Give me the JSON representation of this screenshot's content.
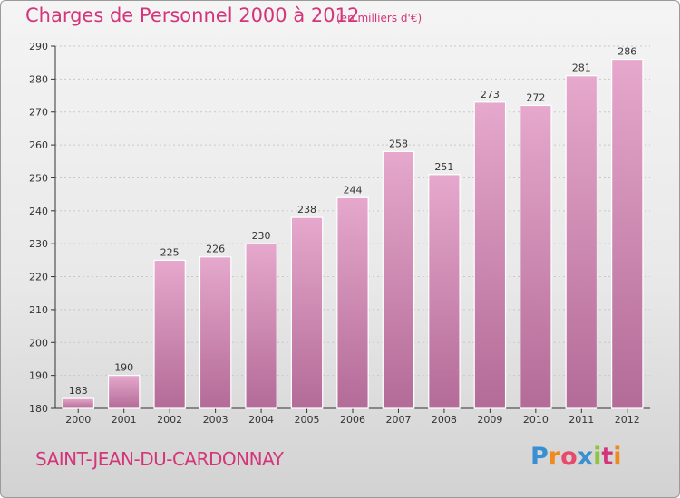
{
  "header": {
    "title": "Charges de Personnel 2000 à 2012",
    "subtitle": "(en milliers d'€)"
  },
  "footer": {
    "city": "SAINT-JEAN-DU-CARDONNAY",
    "logo": {
      "letters": [
        "P",
        "r",
        "o",
        "x",
        "i",
        "t",
        "i"
      ],
      "colors": [
        "#3a8fd0",
        "#f08a1c",
        "#e84a6a",
        "#3a8fd0",
        "#8cc63f",
        "#d4357a",
        "#f08a1c"
      ]
    }
  },
  "colors": {
    "accent": "#d4357a",
    "bar_top": "#e6a8cc",
    "bar_bottom": "#b36b97"
  },
  "chart_data": {
    "type": "bar",
    "title": "Charges de Personnel 2000 à 2012",
    "subtitle": "(en milliers d'€)",
    "xlabel": "",
    "ylabel": "",
    "categories": [
      "2000",
      "2001",
      "2002",
      "2003",
      "2004",
      "2005",
      "2006",
      "2007",
      "2008",
      "2009",
      "2010",
      "2011",
      "2012"
    ],
    "values": [
      183,
      190,
      225,
      226,
      230,
      238,
      244,
      258,
      251,
      273,
      272,
      281,
      286
    ],
    "ylim": [
      180,
      290
    ],
    "yticks": [
      180,
      190,
      200,
      210,
      220,
      230,
      240,
      250,
      260,
      270,
      280,
      290
    ],
    "grid": true,
    "legend": "none"
  }
}
